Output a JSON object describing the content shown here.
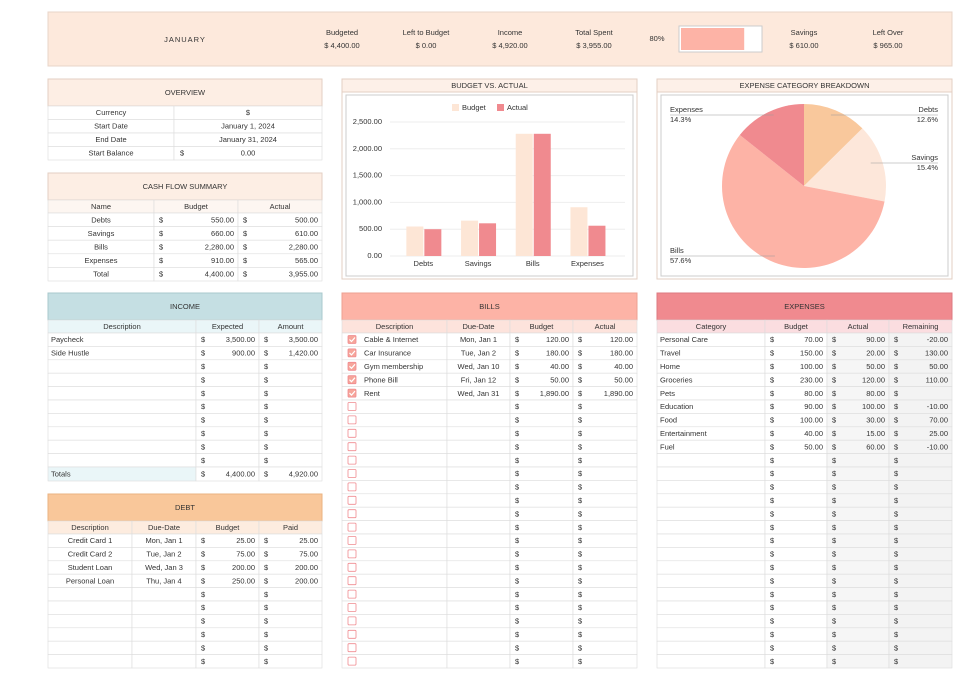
{
  "header": {
    "title": "JANUARY",
    "stats": [
      {
        "label": "Budgeted",
        "value": "$ 4,400.00"
      },
      {
        "label": "Left to Budget",
        "value": "$ 0.00"
      },
      {
        "label": "Income",
        "value": "$ 4,920.00"
      },
      {
        "label": "Total Spent",
        "value": "$ 3,955.00"
      }
    ],
    "progress": {
      "value": 80,
      "label": "80%"
    },
    "stats2": [
      {
        "label": "Savings",
        "value": "$ 610.00"
      },
      {
        "label": "Left Over",
        "value": "$ 965.00"
      }
    ]
  },
  "overview": {
    "title": "OVERVIEW",
    "rows": [
      [
        "Currency",
        "$"
      ],
      [
        "Start Date",
        "January 1, 2024"
      ],
      [
        "End Date",
        "January 31, 2024"
      ],
      [
        "Start Balance",
        "0.00"
      ]
    ]
  },
  "cash_flow": {
    "title": "CASH FLOW SUMMARY",
    "columns": [
      "Name",
      "Budget",
      "Actual"
    ],
    "rows": [
      [
        "Debts",
        "550.00",
        "500.00"
      ],
      [
        "Savings",
        "660.00",
        "610.00"
      ],
      [
        "Bills",
        "2,280.00",
        "2,280.00"
      ],
      [
        "Expenses",
        "910.00",
        "565.00"
      ],
      [
        "Total",
        "4,400.00",
        "3,955.00"
      ]
    ]
  },
  "income": {
    "title": "INCOME",
    "columns": [
      "Description",
      "Expected",
      "Amount"
    ],
    "rows": [
      [
        "Paycheck",
        "3,500.00",
        "3,500.00"
      ],
      [
        "Side Hustle",
        "900.00",
        "1,420.00"
      ]
    ],
    "totals": [
      "Totals",
      "4,400.00",
      "4,920.00"
    ]
  },
  "bills": {
    "title": "BILLS",
    "columns": [
      "Description",
      "Due-Date",
      "Budget",
      "Actual"
    ],
    "rows": [
      [
        "Cable & Internet",
        "Mon, Jan 1",
        "120.00",
        "120.00"
      ],
      [
        "Car Insurance",
        "Tue, Jan 2",
        "180.00",
        "180.00"
      ],
      [
        "Gym membership",
        "Wed, Jan 10",
        "40.00",
        "40.00"
      ],
      [
        "Phone Bill",
        "Fri, Jan 12",
        "50.00",
        "50.00"
      ],
      [
        "Rent",
        "Wed, Jan 31",
        "1,890.00",
        "1,890.00"
      ]
    ],
    "checked": [
      true,
      true,
      true,
      true,
      true
    ]
  },
  "expenses": {
    "title": "EXPENSES",
    "columns": [
      "Category",
      "Budget",
      "Actual",
      "Remaining"
    ],
    "rows": [
      [
        "Personal Care",
        "70.00",
        "90.00",
        "-20.00"
      ],
      [
        "Travel",
        "150.00",
        "20.00",
        "130.00"
      ],
      [
        "Home",
        "100.00",
        "50.00",
        "50.00"
      ],
      [
        "Groceries",
        "230.00",
        "120.00",
        "110.00"
      ],
      [
        "Pets",
        "80.00",
        "80.00",
        null
      ],
      [
        "Education",
        "90.00",
        "100.00",
        "-10.00"
      ],
      [
        "Food",
        "100.00",
        "30.00",
        "70.00"
      ],
      [
        "Entertainment",
        "40.00",
        "15.00",
        "25.00"
      ],
      [
        "Fuel",
        "50.00",
        "60.00",
        "-10.00"
      ]
    ]
  },
  "debt": {
    "title": "DEBT",
    "columns": [
      "Description",
      "Due-Date",
      "Budget",
      "Paid"
    ],
    "rows": [
      [
        "Credit Card 1",
        "Mon, Jan 1",
        "25.00",
        "25.00"
      ],
      [
        "Credit Card 2",
        "Tue, Jan 2",
        "75.00",
        "75.00"
      ],
      [
        "Student Loan",
        "Wed, Jan 3",
        "200.00",
        "200.00"
      ],
      [
        "Personal Loan",
        "Thu, Jan 4",
        "250.00",
        "200.00"
      ]
    ]
  },
  "chart_data": [
    {
      "type": "bar",
      "title": "BUDGET VS. ACTUAL",
      "categories": [
        "Debts",
        "Savings",
        "Bills",
        "Expenses"
      ],
      "series": [
        {
          "name": "Budget",
          "color": "#fde6d6",
          "values": [
            550,
            660,
            2280,
            910
          ]
        },
        {
          "name": "Actual",
          "color": "#f08a8f",
          "values": [
            500,
            610,
            2280,
            565
          ]
        }
      ],
      "ylim": [
        0,
        2500
      ],
      "yticks": [
        {
          "value": 0,
          "label": "0.00"
        },
        {
          "value": 500,
          "label": "500.00"
        },
        {
          "value": 1000,
          "label": "1,000.00"
        },
        {
          "value": 1500,
          "label": "1,500.00"
        },
        {
          "value": 2000,
          "label": "2,000.00"
        },
        {
          "value": 2500,
          "label": "2,500.00"
        }
      ],
      "grid": true,
      "legend": "top"
    },
    {
      "type": "pie",
      "title": "EXPENSE CATEGORY BREAKDOWN",
      "categories": [
        "Debts",
        "Savings",
        "Bills",
        "Expenses"
      ],
      "values": [
        12.6,
        15.4,
        57.6,
        14.3
      ],
      "value_labels": [
        "12.6%",
        "15.4%",
        "57.6%",
        "14.3%"
      ],
      "colors": [
        "#f9c89c",
        "#fde7da",
        "#fdb3a6",
        "#f08a8f"
      ]
    }
  ]
}
